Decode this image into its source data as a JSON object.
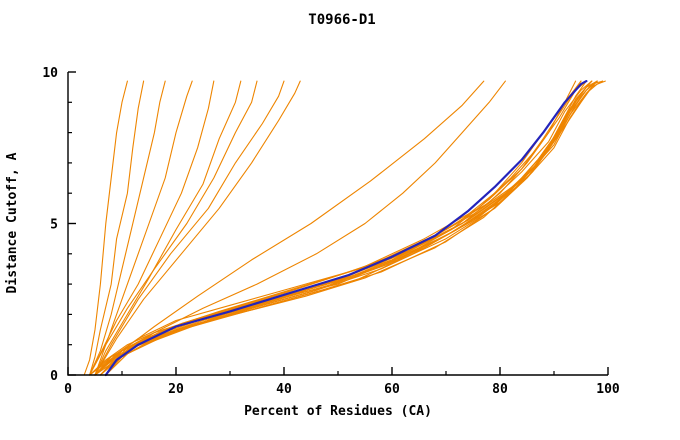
{
  "title": "T0966-D1",
  "chart_data": {
    "type": "line",
    "title": "T0966-D1",
    "xlabel": "Percent of Residues (CA)",
    "ylabel": "Distance Cutoff, A",
    "xlim": [
      0,
      100
    ],
    "ylim": [
      0,
      10
    ],
    "x_ticks": [
      0,
      20,
      40,
      60,
      80,
      100
    ],
    "x_minor_ticks": [
      10,
      30,
      50,
      70,
      90
    ],
    "y_ticks": [
      0,
      5,
      10
    ],
    "y_minor_ticks": [
      1,
      2,
      3,
      4,
      6,
      7,
      8,
      9
    ],
    "grid": false,
    "legend": "none",
    "colors": {
      "model_lines": "#ee8500",
      "highlight_line": "#2424bb",
      "axis": "#000000",
      "background": "#ffffff"
    },
    "series_note": "orange_curves are individual model GDT curves; blue_curve is the highlighted median/selected model",
    "orange_curves": [
      [
        [
          5,
          0
        ],
        [
          8,
          0.6
        ],
        [
          12,
          1
        ],
        [
          18,
          1.5
        ],
        [
          28,
          2
        ],
        [
          38,
          2.5
        ],
        [
          50,
          3
        ],
        [
          63,
          4
        ],
        [
          73,
          5
        ],
        [
          80,
          6
        ],
        [
          85,
          7
        ],
        [
          89,
          8
        ],
        [
          92,
          9
        ],
        [
          94,
          9.7
        ]
      ],
      [
        [
          6,
          0
        ],
        [
          9,
          0.5
        ],
        [
          14,
          1.1
        ],
        [
          22,
          1.6
        ],
        [
          33,
          2.1
        ],
        [
          44,
          2.6
        ],
        [
          55,
          3.2
        ],
        [
          68,
          4.2
        ],
        [
          77,
          5.2
        ],
        [
          83,
          6.2
        ],
        [
          88,
          7.2
        ],
        [
          91,
          8.2
        ],
        [
          94,
          9.2
        ],
        [
          96,
          9.7
        ]
      ],
      [
        [
          4,
          0
        ],
        [
          7,
          0.5
        ],
        [
          11,
          1
        ],
        [
          16,
          1.4
        ],
        [
          25,
          1.9
        ],
        [
          36,
          2.4
        ],
        [
          48,
          3
        ],
        [
          62,
          4
        ],
        [
          72,
          5
        ],
        [
          79,
          6
        ],
        [
          84,
          7
        ],
        [
          88,
          8
        ],
        [
          92,
          9
        ],
        [
          95,
          9.7
        ]
      ],
      [
        [
          7,
          0
        ],
        [
          10,
          0.6
        ],
        [
          15,
          1.1
        ],
        [
          24,
          1.7
        ],
        [
          35,
          2.2
        ],
        [
          47,
          2.8
        ],
        [
          58,
          3.4
        ],
        [
          70,
          4.4
        ],
        [
          79,
          5.5
        ],
        [
          85,
          6.5
        ],
        [
          89,
          7.5
        ],
        [
          92,
          8.5
        ],
        [
          95,
          9.3
        ],
        [
          97,
          9.7
        ]
      ],
      [
        [
          5,
          0
        ],
        [
          9,
          0.7
        ],
        [
          13,
          1.2
        ],
        [
          20,
          1.8
        ],
        [
          30,
          2.3
        ],
        [
          42,
          2.9
        ],
        [
          54,
          3.5
        ],
        [
          66,
          4.5
        ],
        [
          76,
          5.5
        ],
        [
          82,
          6.5
        ],
        [
          87,
          7.5
        ],
        [
          91,
          8.5
        ],
        [
          94,
          9.4
        ],
        [
          96,
          9.7
        ]
      ],
      [
        [
          6,
          0
        ],
        [
          10,
          0.8
        ],
        [
          16,
          1.3
        ],
        [
          26,
          1.9
        ],
        [
          38,
          2.5
        ],
        [
          50,
          3.1
        ],
        [
          61,
          3.8
        ],
        [
          72,
          4.8
        ],
        [
          80,
          5.8
        ],
        [
          86,
          6.8
        ],
        [
          90,
          7.8
        ],
        [
          93,
          8.8
        ],
        [
          96,
          9.5
        ],
        [
          98,
          9.7
        ]
      ],
      [
        [
          5,
          0
        ],
        [
          8,
          0.5
        ],
        [
          12,
          0.9
        ],
        [
          19,
          1.4
        ],
        [
          29,
          1.9
        ],
        [
          41,
          2.5
        ],
        [
          53,
          3.1
        ],
        [
          65,
          4.1
        ],
        [
          75,
          5.1
        ],
        [
          82,
          6.1
        ],
        [
          87,
          7.1
        ],
        [
          91,
          8.1
        ],
        [
          94,
          9.1
        ],
        [
          97,
          9.7
        ]
      ],
      [
        [
          4,
          0
        ],
        [
          8,
          0.6
        ],
        [
          13,
          1.1
        ],
        [
          21,
          1.7
        ],
        [
          32,
          2.3
        ],
        [
          45,
          3
        ],
        [
          57,
          3.7
        ],
        [
          69,
          4.7
        ],
        [
          78,
          5.7
        ],
        [
          84,
          6.7
        ],
        [
          89,
          7.7
        ],
        [
          92,
          8.7
        ],
        [
          95,
          9.4
        ],
        [
          97,
          9.7
        ]
      ],
      [
        [
          6,
          0
        ],
        [
          11,
          0.9
        ],
        [
          17,
          1.4
        ],
        [
          27,
          2
        ],
        [
          40,
          2.7
        ],
        [
          52,
          3.4
        ],
        [
          63,
          4.1
        ],
        [
          74,
          5.1
        ],
        [
          82,
          6.1
        ],
        [
          87,
          7.1
        ],
        [
          91,
          8.1
        ],
        [
          94,
          9
        ],
        [
          96,
          9.5
        ],
        [
          98,
          9.7
        ]
      ],
      [
        [
          5,
          0
        ],
        [
          9,
          0.6
        ],
        [
          15,
          1.2
        ],
        [
          25,
          1.8
        ],
        [
          37,
          2.4
        ],
        [
          49,
          3
        ],
        [
          60,
          3.7
        ],
        [
          71,
          4.7
        ],
        [
          80,
          5.7
        ],
        [
          86,
          6.7
        ],
        [
          90,
          7.7
        ],
        [
          93,
          8.7
        ],
        [
          96,
          9.4
        ],
        [
          98,
          9.7
        ]
      ],
      [
        [
          7,
          0
        ],
        [
          11,
          0.7
        ],
        [
          18,
          1.3
        ],
        [
          29,
          2
        ],
        [
          42,
          2.7
        ],
        [
          55,
          3.4
        ],
        [
          66,
          4.2
        ],
        [
          76,
          5.2
        ],
        [
          83,
          6.2
        ],
        [
          88,
          7.2
        ],
        [
          92,
          8.2
        ],
        [
          95,
          9
        ],
        [
          97,
          9.5
        ],
        [
          99,
          9.7
        ]
      ],
      [
        [
          5,
          0
        ],
        [
          10,
          0.8
        ],
        [
          16,
          1.4
        ],
        [
          28,
          2.1
        ],
        [
          41,
          2.8
        ],
        [
          54,
          3.5
        ],
        [
          65,
          4.3
        ],
        [
          75,
          5.3
        ],
        [
          83,
          6.3
        ],
        [
          88,
          7.3
        ],
        [
          92,
          8.3
        ],
        [
          95,
          9.2
        ],
        [
          97,
          9.6
        ],
        [
          99,
          9.7
        ]
      ],
      [
        [
          6,
          0
        ],
        [
          12,
          1
        ],
        [
          20,
          1.6
        ],
        [
          33,
          2.3
        ],
        [
          47,
          3
        ],
        [
          60,
          3.8
        ],
        [
          70,
          4.6
        ],
        [
          79,
          5.6
        ],
        [
          85,
          6.6
        ],
        [
          90,
          7.6
        ],
        [
          93,
          8.6
        ],
        [
          96,
          9.3
        ],
        [
          98,
          9.6
        ],
        [
          99.5,
          9.7
        ]
      ],
      [
        [
          5,
          0
        ],
        [
          9,
          0.5
        ],
        [
          14,
          1
        ],
        [
          23,
          1.6
        ],
        [
          34,
          2.2
        ],
        [
          46,
          2.8
        ],
        [
          58,
          3.5
        ],
        [
          70,
          4.5
        ],
        [
          79,
          5.5
        ],
        [
          85,
          6.5
        ],
        [
          90,
          7.5
        ],
        [
          93,
          8.5
        ],
        [
          96,
          9.3
        ],
        [
          98,
          9.7
        ]
      ],
      [
        [
          4,
          0
        ],
        [
          7,
          0.4
        ],
        [
          10,
          0.8
        ],
        [
          15,
          1.2
        ],
        [
          24,
          1.7
        ],
        [
          34,
          2.2
        ],
        [
          46,
          2.8
        ],
        [
          60,
          3.8
        ],
        [
          71,
          4.8
        ],
        [
          78,
          5.8
        ],
        [
          84,
          6.8
        ],
        [
          88,
          7.8
        ],
        [
          92,
          8.9
        ],
        [
          95,
          9.7
        ]
      ],
      [
        [
          6,
          0
        ],
        [
          10,
          0.6
        ],
        [
          16,
          1.2
        ],
        [
          26,
          1.8
        ],
        [
          39,
          2.5
        ],
        [
          51,
          3.2
        ],
        [
          62,
          4
        ],
        [
          73,
          5
        ],
        [
          81,
          6
        ],
        [
          87,
          7
        ],
        [
          91,
          8
        ],
        [
          94,
          8.9
        ],
        [
          96,
          9.4
        ],
        [
          98,
          9.7
        ]
      ],
      [
        [
          3,
          0
        ],
        [
          4,
          0.5
        ],
        [
          5,
          1.5
        ],
        [
          6,
          3
        ],
        [
          7,
          5
        ],
        [
          8,
          6.5
        ],
        [
          9,
          8
        ],
        [
          10,
          9
        ],
        [
          11,
          9.7
        ]
      ],
      [
        [
          4,
          0
        ],
        [
          5,
          0.6
        ],
        [
          6,
          1.5
        ],
        [
          8,
          3
        ],
        [
          9,
          4.5
        ],
        [
          11,
          6
        ],
        [
          12,
          7.5
        ],
        [
          13,
          8.8
        ],
        [
          14,
          9.7
        ]
      ],
      [
        [
          4,
          0
        ],
        [
          6,
          0.8
        ],
        [
          8,
          2
        ],
        [
          10,
          3.5
        ],
        [
          12,
          5
        ],
        [
          14,
          6.5
        ],
        [
          16,
          8
        ],
        [
          17,
          9
        ],
        [
          18,
          9.7
        ]
      ],
      [
        [
          5,
          0
        ],
        [
          7,
          1
        ],
        [
          9,
          2
        ],
        [
          12,
          3.5
        ],
        [
          15,
          5
        ],
        [
          18,
          6.5
        ],
        [
          20,
          8
        ],
        [
          22,
          9.2
        ],
        [
          23,
          9.7
        ]
      ],
      [
        [
          4,
          0
        ],
        [
          6,
          0.7
        ],
        [
          9,
          1.8
        ],
        [
          13,
          3
        ],
        [
          17,
          4.5
        ],
        [
          21,
          6
        ],
        [
          24,
          7.5
        ],
        [
          26,
          8.8
        ],
        [
          27,
          9.7
        ]
      ],
      [
        [
          5,
          0
        ],
        [
          7,
          0.8
        ],
        [
          11,
          2
        ],
        [
          15,
          3.2
        ],
        [
          20,
          4.8
        ],
        [
          25,
          6.3
        ],
        [
          28,
          7.8
        ],
        [
          31,
          9
        ],
        [
          32,
          9.7
        ]
      ],
      [
        [
          4,
          0
        ],
        [
          7,
          1
        ],
        [
          11,
          2.2
        ],
        [
          16,
          3.5
        ],
        [
          22,
          5
        ],
        [
          27,
          6.5
        ],
        [
          31,
          8
        ],
        [
          34,
          9
        ],
        [
          35,
          9.7
        ]
      ],
      [
        [
          5,
          0
        ],
        [
          8,
          1
        ],
        [
          13,
          2.5
        ],
        [
          19,
          4
        ],
        [
          26,
          5.5
        ],
        [
          31,
          7
        ],
        [
          36,
          8.3
        ],
        [
          39,
          9.2
        ],
        [
          40,
          9.7
        ]
      ],
      [
        [
          5,
          0
        ],
        [
          9,
          1.2
        ],
        [
          14,
          2.5
        ],
        [
          21,
          4
        ],
        [
          28,
          5.5
        ],
        [
          34,
          7
        ],
        [
          39,
          8.4
        ],
        [
          42,
          9.3
        ],
        [
          43,
          9.7
        ]
      ],
      [
        [
          7,
          0
        ],
        [
          10,
          0.8
        ],
        [
          16,
          1.6
        ],
        [
          24,
          2.6
        ],
        [
          34,
          3.8
        ],
        [
          45,
          5
        ],
        [
          56,
          6.4
        ],
        [
          66,
          7.8
        ],
        [
          73,
          8.9
        ],
        [
          77,
          9.7
        ]
      ],
      [
        [
          6,
          0
        ],
        [
          10,
          0.7
        ],
        [
          16,
          1.4
        ],
        [
          25,
          2.2
        ],
        [
          35,
          3
        ],
        [
          46,
          4
        ],
        [
          55,
          5
        ],
        [
          62,
          6
        ],
        [
          68,
          7
        ],
        [
          73,
          8
        ],
        [
          78,
          9
        ],
        [
          81,
          9.7
        ]
      ]
    ],
    "blue_curve": [
      [
        7,
        0
      ],
      [
        9,
        0.5
      ],
      [
        13,
        1
      ],
      [
        20,
        1.6
      ],
      [
        30,
        2.1
      ],
      [
        41,
        2.7
      ],
      [
        52,
        3.3
      ],
      [
        60,
        3.9
      ],
      [
        68,
        4.6
      ],
      [
        74,
        5.4
      ],
      [
        79,
        6.2
      ],
      [
        84,
        7.1
      ],
      [
        88,
        8
      ],
      [
        92,
        9
      ],
      [
        95,
        9.6
      ],
      [
        96,
        9.7
      ]
    ]
  }
}
